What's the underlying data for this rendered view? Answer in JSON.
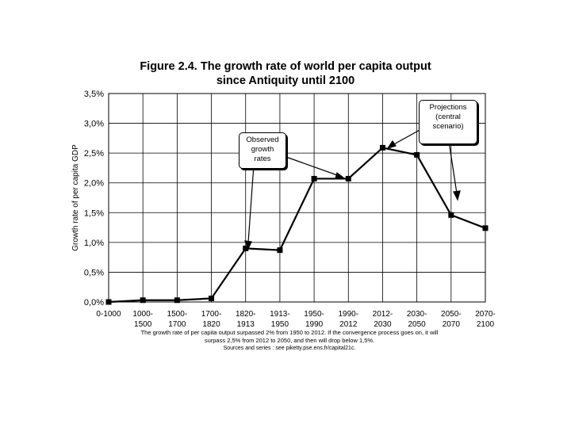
{
  "title_line1": "Figure 2.4. The growth rate of world per capita output",
  "title_line2": "since Antiquity until 2100",
  "caption_line1": "The growth rate of per capita output surpassed 2% from 1950 to 2012. If the convergence process goes on, it will",
  "caption_line2": "surpass 2,5% from 2012 to 2050, and then will drop below 1,5%.",
  "caption_line3": "Sources and series : see piketty.pse.ens.fr/capital21c.",
  "annotations": {
    "observed": [
      "Observed",
      "growth",
      "rates"
    ],
    "projections": [
      "Projections",
      "(central",
      "scenario)"
    ]
  },
  "chart_data": {
    "type": "line",
    "title": "Figure 2.4. The growth rate of world per capita output since Antiquity until 2100",
    "xlabel": "",
    "ylabel": "Growth rate of per capita GDP",
    "ylim": [
      0,
      3.5
    ],
    "yticks": [
      "0,0%",
      "0,5%",
      "1,0%",
      "1,5%",
      "2,0%",
      "2,5%",
      "3,0%",
      "3,5%"
    ],
    "grid": true,
    "categories": [
      [
        "0-1000"
      ],
      [
        "1000-",
        "1500"
      ],
      [
        "1500-",
        "1700"
      ],
      [
        "1700-",
        "1820"
      ],
      [
        "1820-",
        "1913"
      ],
      [
        "1913-",
        "1950"
      ],
      [
        "1950-",
        "1990"
      ],
      [
        "1990-",
        "2012"
      ],
      [
        "2012-",
        "2030"
      ],
      [
        "2030-",
        "2050"
      ],
      [
        "2050-",
        "2070"
      ],
      [
        "2070-",
        "2100"
      ]
    ],
    "values": [
      0.0,
      0.03,
      0.03,
      0.06,
      0.9,
      0.87,
      2.07,
      2.07,
      2.59,
      2.47,
      1.46,
      1.24
    ],
    "marker": "square",
    "line_color": "#000000"
  }
}
